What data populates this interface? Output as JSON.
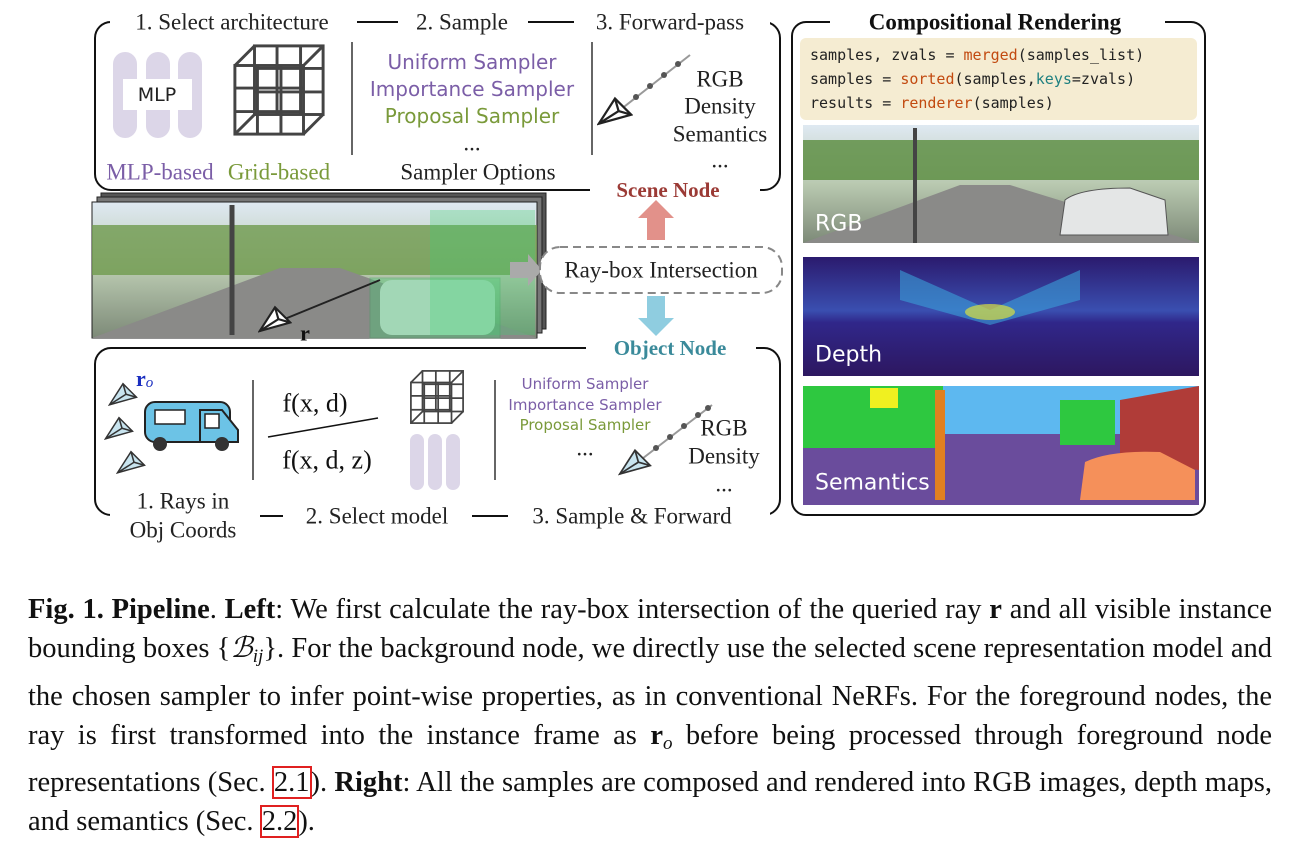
{
  "scene_node": {
    "title": "Scene Node",
    "steps": [
      "1. Select architecture",
      "2. Sample",
      "3. Forward-pass"
    ],
    "mlp": "MLP",
    "models": [
      "MLP-based",
      "Grid-based"
    ],
    "samplers": [
      "Uniform Sampler",
      "Importance Sampler",
      "Proposal Sampler",
      "..."
    ],
    "sampler_options": "Sampler Options",
    "outputs": [
      "RGB",
      "Density",
      "Semantics",
      "..."
    ]
  },
  "intersection": {
    "label": "Ray-box Intersection",
    "ray": "r"
  },
  "object_node": {
    "title": "Object Node",
    "ray": "r",
    "ray_sub": "o",
    "steps": [
      [
        "1. Rays in",
        "Obj Coords"
      ],
      "2. Select model",
      "3. Sample & Forward"
    ],
    "functions": [
      "f(x, d)",
      "f(x, d, z)"
    ],
    "samplers": [
      "Uniform Sampler",
      "Importance Sampler",
      "Proposal Sampler",
      "..."
    ],
    "outputs": [
      "RGB",
      "Density",
      "..."
    ]
  },
  "rendering": {
    "title": "Compositional Rendering",
    "code": [
      [
        {
          "text": "samples, zvals = ",
          "color": "#222222"
        },
        {
          "text": "merged",
          "color": "#c24a10"
        },
        {
          "text": "(samples_list)",
          "color": "#222222"
        }
      ],
      [
        {
          "text": "samples = ",
          "color": "#222222"
        },
        {
          "text": "sorted",
          "color": "#c24a10"
        },
        {
          "text": "(samples,",
          "color": "#222222"
        },
        {
          "text": "keys",
          "color": "#1f8080"
        },
        {
          "text": "=zvals)",
          "color": "#222222"
        }
      ],
      [
        {
          "text": "results = ",
          "color": "#222222"
        },
        {
          "text": "renderer",
          "color": "#c24a10"
        },
        {
          "text": "(samples)",
          "color": "#222222"
        }
      ]
    ],
    "panels": [
      "RGB",
      "Depth",
      "Semantics"
    ]
  },
  "caption": [
    {
      "text": "Fig. 1. Pipeline",
      "style": "bold"
    },
    {
      "text": ". ",
      "style": "plain"
    },
    {
      "text": "Left",
      "style": "bold"
    },
    {
      "text": ": We first calculate the ray-box intersection of the queried ray ",
      "style": "plain"
    },
    {
      "text": "r",
      "style": "bold"
    },
    {
      "text": " and all visible instance bounding boxes {",
      "style": "plain"
    },
    {
      "text": "ℬ",
      "style": "italic"
    },
    {
      "text": "ij",
      "style": "sub"
    },
    {
      "text": "}. For the background node, we directly use the selected scene representation model and the chosen sampler to infer point-wise properties, as in conventional NeRFs. For the foreground nodes, the ray is first transformed into the instance frame as ",
      "style": "plain"
    },
    {
      "text": "r",
      "style": "bold"
    },
    {
      "text": "o",
      "style": "sub"
    },
    {
      "text": " before being processed through foreground node representations (Sec. ",
      "style": "plain"
    },
    {
      "text": "2.1",
      "style": "link"
    },
    {
      "text": "). ",
      "style": "plain"
    },
    {
      "text": "Right",
      "style": "bold"
    },
    {
      "text": ": All the samples are composed and rendered into RGB images, depth maps, and semantics (Sec. ",
      "style": "plain"
    },
    {
      "text": "2.2",
      "style": "link"
    },
    {
      "text": ").",
      "style": "plain"
    }
  ]
}
